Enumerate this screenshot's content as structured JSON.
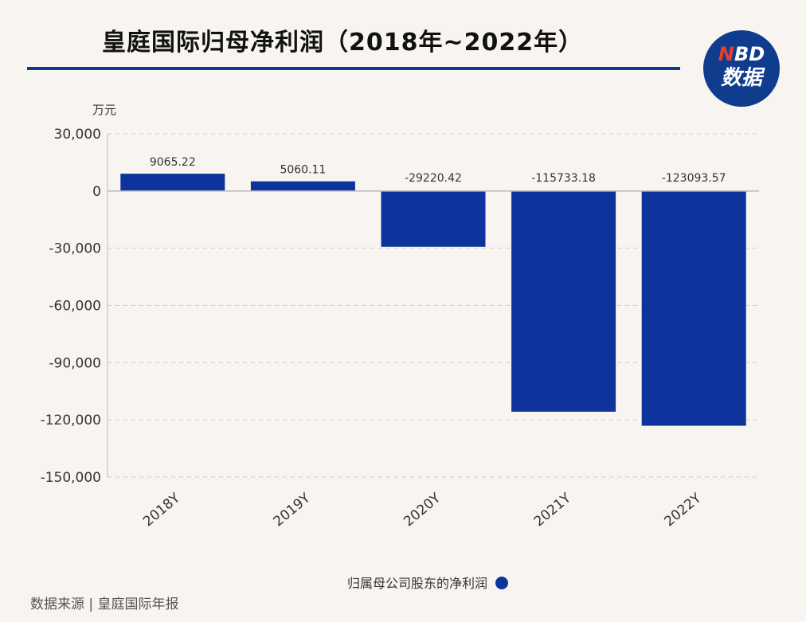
{
  "header": {
    "title": "皇庭国际归母净利润（2018年~2022年）",
    "logo_top": "NBD",
    "logo_bottom": "数据"
  },
  "footer": {
    "source": "数据来源 | 皇庭国际年报"
  },
  "colors": {
    "bar": "#0f339c",
    "accent": "#0f3c8c",
    "logo_n": "#e8402f"
  },
  "chart_data": {
    "type": "bar",
    "categories": [
      "2018Y",
      "2019Y",
      "2020Y",
      "2021Y",
      "2022Y"
    ],
    "series": [
      {
        "name": "归属母公司股东的净利润",
        "values": [
          9065.22,
          5060.11,
          -29220.42,
          -115733.18,
          -123093.57
        ],
        "data_labels": [
          "9065.22",
          "5060.11",
          "-29220.42",
          "-115733.18",
          "-123093.57"
        ]
      }
    ],
    "ylabel": "万元",
    "ylim": [
      -150000,
      30000
    ],
    "yticks": [
      30000,
      0,
      -30000,
      -60000,
      -90000,
      -120000,
      -150000
    ],
    "ytick_labels": [
      "30,000",
      "0",
      "-30,000",
      "-60,000",
      "-90,000",
      "-120,000",
      "-150,000"
    ],
    "grid": true,
    "legend_position": "bottom-center"
  }
}
